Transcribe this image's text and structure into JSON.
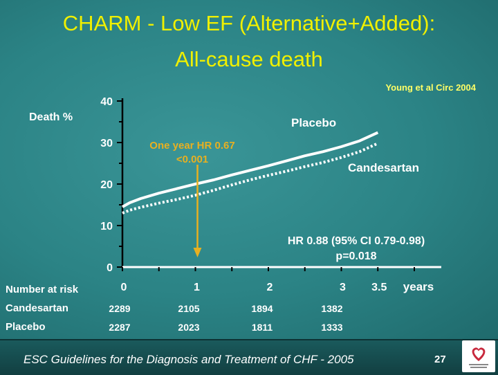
{
  "title_line1": "CHARM - Low EF (Alternative+Added):",
  "title_line2": "All-cause death",
  "citation": "Young et al Circ 2004",
  "y_label": "Death %",
  "x_unit": "years",
  "annotation": {
    "line1": "One year HR 0.67",
    "line2": "<0.001",
    "x": 1
  },
  "hr_text": {
    "line1": "HR 0.88 (95% CI 0.79-0.98)",
    "line2": "p=0.018"
  },
  "risk_table": {
    "header": "Number at risk",
    "rows": [
      {
        "label": "Candesartan",
        "values": [
          "2289",
          "2105",
          "1894",
          "1382"
        ]
      },
      {
        "label": "Placebo",
        "values": [
          "2287",
          "2023",
          "1811",
          "1333"
        ]
      }
    ]
  },
  "footer": {
    "text": "ESC Guidelines for the Diagnosis and Treatment of CHF - 2005",
    "page": "27"
  },
  "colors": {
    "title": "#f0f000",
    "annotation": "#e8b020",
    "placebo": "#ffffff",
    "candesartan": "#ffffff"
  },
  "chart_data": {
    "type": "line",
    "xlabel": "years",
    "ylabel": "Death %",
    "xlim": [
      0,
      4.2
    ],
    "ylim": [
      0,
      40
    ],
    "x_ticks": [
      0,
      1,
      2,
      3,
      3.5
    ],
    "x_tick_labels": [
      "0",
      "1",
      "2",
      "3",
      "3.5"
    ],
    "y_ticks": [
      0,
      10,
      20,
      30,
      40
    ],
    "y_tick_labels": [
      "0",
      "10",
      "20",
      "30",
      "40"
    ],
    "grid": false,
    "series": [
      {
        "name": "Placebo",
        "style": "solid",
        "x": [
          0,
          0.1,
          0.25,
          0.5,
          0.75,
          1.0,
          1.25,
          1.5,
          1.75,
          2.0,
          2.25,
          2.5,
          2.75,
          3.0,
          3.25,
          3.5
        ],
        "y": [
          14.5,
          15.5,
          16.5,
          17.8,
          18.9,
          20.0,
          21.0,
          22.2,
          23.3,
          24.4,
          25.6,
          26.8,
          27.8,
          29.0,
          30.4,
          32.4
        ]
      },
      {
        "name": "Candesartan",
        "style": "dotted",
        "x": [
          0,
          0.1,
          0.25,
          0.5,
          0.75,
          1.0,
          1.25,
          1.5,
          1.75,
          2.0,
          2.25,
          2.5,
          2.75,
          3.0,
          3.25,
          3.5
        ],
        "y": [
          13.0,
          13.7,
          14.4,
          15.4,
          16.3,
          17.3,
          18.5,
          19.8,
          21.0,
          22.1,
          23.1,
          24.2,
          25.2,
          26.4,
          27.8,
          29.8
        ]
      }
    ]
  }
}
